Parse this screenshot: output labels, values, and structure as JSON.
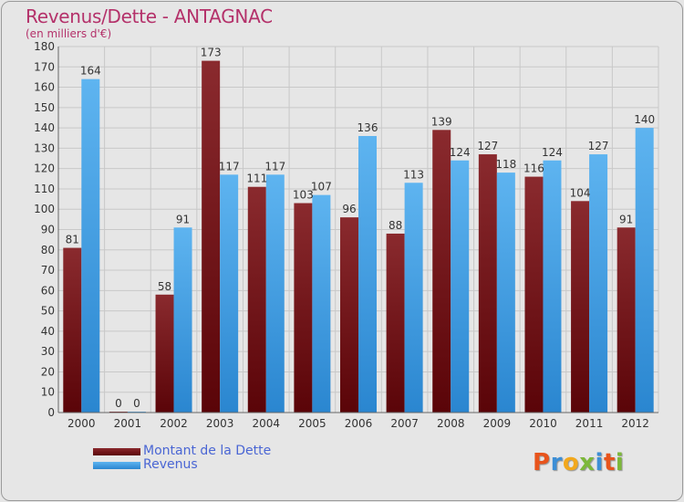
{
  "chart_data": {
    "type": "bar",
    "title": "Revenus/Dette - ANTAGNAC",
    "subtitle": "(en milliers d'€)",
    "categories": [
      "2000",
      "2001",
      "2002",
      "2003",
      "2004",
      "2005",
      "2006",
      "2007",
      "2008",
      "2009",
      "2010",
      "2011",
      "2012"
    ],
    "series": [
      {
        "name": "Montant de la Dette",
        "color": "#6b0f14",
        "values": [
          81,
          0,
          58,
          173,
          111,
          103,
          96,
          88,
          139,
          127,
          116,
          104,
          91
        ]
      },
      {
        "name": "Revenus",
        "color": "#3a9ee6",
        "values": [
          164,
          0,
          91,
          117,
          117,
          107,
          136,
          113,
          124,
          118,
          124,
          127,
          140
        ]
      }
    ],
    "ylim": [
      0,
      180
    ],
    "ytick_step": 10,
    "grid": true,
    "legend_position": "bottom-left"
  },
  "logo_text": [
    "P",
    "r",
    "o",
    "x",
    "i",
    "t",
    "i"
  ],
  "logo_colors": [
    "#e8541c",
    "#3d8fd6",
    "#f2a81d",
    "#7db83a",
    "#3d8fd6",
    "#e8541c",
    "#7db83a"
  ]
}
